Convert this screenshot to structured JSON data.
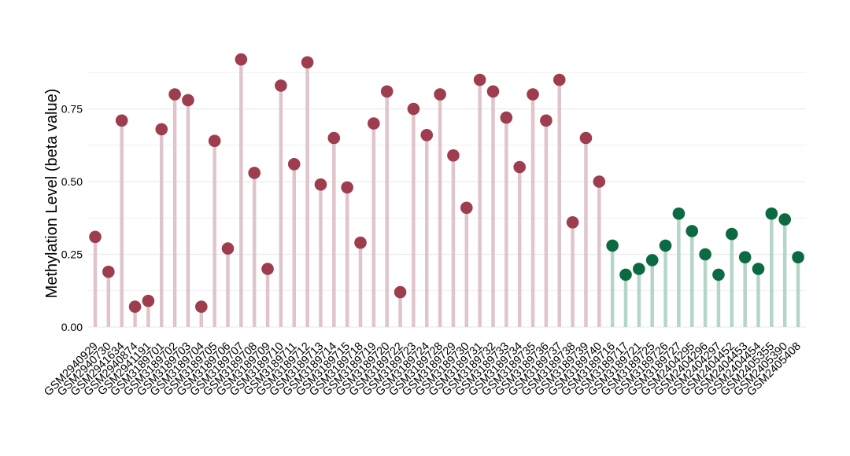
{
  "chart_data": {
    "type": "lollipop",
    "ylabel": "Methylation Level (beta value)",
    "xlabel": "",
    "title": "",
    "ylim": [
      0,
      1.0
    ],
    "yticks": [
      0.0,
      0.25,
      0.5,
      0.75
    ],
    "ytick_labels": [
      "0.00",
      "0.25",
      "0.50",
      "0.75"
    ],
    "grid": true,
    "legend": "none",
    "colors": {
      "group_a_dot": "#9e3d4e",
      "group_a_stem": "#e0c4cb",
      "group_b_dot": "#0b6a42",
      "group_b_stem": "#b4d5c8",
      "grid": "#ececec"
    },
    "series": [
      {
        "color_key": "group_a",
        "categories": [
          "GSM2940929",
          "GSM2940730",
          "GSM2941634",
          "GSM2940874",
          "GSM2941191",
          "GSM3189701",
          "GSM3189702",
          "GSM3189703",
          "GSM3189704",
          "GSM3189705",
          "GSM3189706",
          "GSM3189707",
          "GSM3189708",
          "GSM3189709",
          "GSM3189710",
          "GSM3189711",
          "GSM3189712",
          "GSM3189713",
          "GSM3189714",
          "GSM3189715",
          "GSM3189718",
          "GSM3189719",
          "GSM3189720",
          "GSM3189722",
          "GSM3189723",
          "GSM3189724",
          "GSM3189728",
          "GSM3189729",
          "GSM3189730",
          "GSM3189731",
          "GSM3189732",
          "GSM3189733",
          "GSM3189734",
          "GSM3189735",
          "GSM3189736",
          "GSM3189737",
          "GSM3189738",
          "GSM3189739",
          "GSM3189740"
        ],
        "values": [
          0.31,
          0.19,
          0.71,
          0.07,
          0.09,
          0.68,
          0.8,
          0.78,
          0.07,
          0.64,
          0.27,
          0.92,
          0.53,
          0.2,
          0.83,
          0.56,
          0.91,
          0.49,
          0.65,
          0.48,
          0.29,
          0.7,
          0.81,
          0.12,
          0.75,
          0.66,
          0.8,
          0.59,
          0.41,
          0.85,
          0.81,
          0.72,
          0.55,
          0.8,
          0.71,
          0.85,
          0.36,
          0.65,
          0.5
        ]
      },
      {
        "color_key": "group_b",
        "categories": [
          "GSM3189716",
          "GSM3189717",
          "GSM3189721",
          "GSM3189725",
          "GSM3189726",
          "GSM3189727",
          "GSM2404295",
          "GSM2404296",
          "GSM2404297",
          "GSM2404452",
          "GSM2404453",
          "GSM2404454",
          "GSM2405355",
          "GSM2405390",
          "GSM2405408"
        ],
        "values": [
          0.28,
          0.18,
          0.2,
          0.23,
          0.28,
          0.39,
          0.33,
          0.25,
          0.18,
          0.32,
          0.24,
          0.2,
          0.39,
          0.37,
          0.24
        ]
      }
    ]
  }
}
